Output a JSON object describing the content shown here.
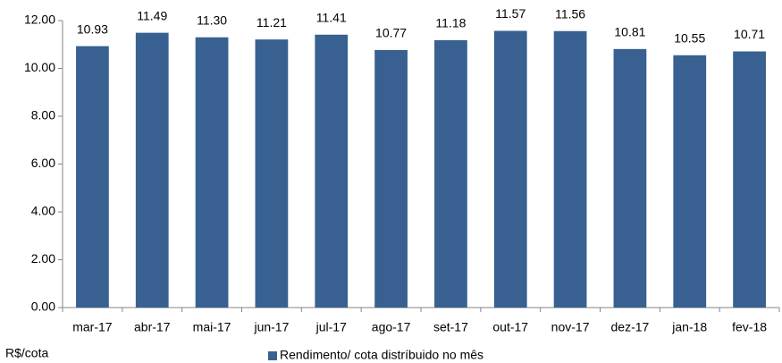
{
  "chart_data": {
    "type": "bar",
    "categories": [
      "mar-17",
      "abr-17",
      "mai-17",
      "jun-17",
      "jul-17",
      "ago-17",
      "set-17",
      "out-17",
      "nov-17",
      "dez-17",
      "jan-18",
      "fev-18"
    ],
    "series": [
      {
        "name": "Rendimento/ cota distríbuido no mês",
        "color": "#386192",
        "values": [
          10.93,
          11.49,
          11.3,
          11.21,
          11.41,
          10.77,
          11.18,
          11.57,
          11.56,
          10.81,
          10.55,
          10.71
        ],
        "value_labels": [
          "10.93",
          "11.49",
          "11.30",
          "11.21",
          "11.41",
          "10.77",
          "11.18",
          "11.57",
          "11.56",
          "10.81",
          "10.55",
          "10.71"
        ]
      }
    ],
    "y_label": "R$/cota",
    "ylim": [
      0,
      12
    ],
    "yticks": [
      {
        "value": 0,
        "label": "0.00"
      },
      {
        "value": 2,
        "label": "2.00"
      },
      {
        "value": 4,
        "label": "4.00"
      },
      {
        "value": 6,
        "label": "6.00"
      },
      {
        "value": 8,
        "label": "8.00"
      },
      {
        "value": 10,
        "label": "10.00"
      },
      {
        "value": 12,
        "label": "12.00"
      }
    ],
    "grid": false,
    "legend": "bottom"
  }
}
